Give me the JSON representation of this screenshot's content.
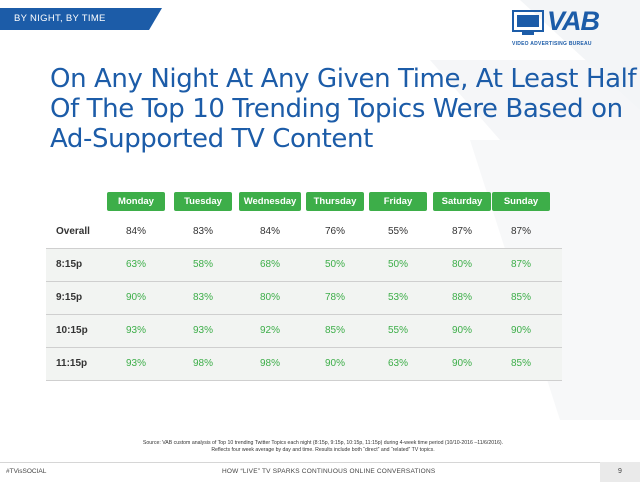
{
  "banner": "BY NIGHT, BY TIME",
  "logo": {
    "wordmark": "VAB",
    "tagline": "VIDEO ADVERTISING BUREAU",
    "brand_color": "#1c5ca8"
  },
  "headline": [
    "On Any Night At Any Given Time, At Least Half",
    "Of The Top 10 Trending Topics Were Based on",
    "Ad-Supported TV Content"
  ],
  "table": {
    "days": [
      "Monday",
      "Tuesday",
      "Wednesday",
      "Thursday",
      "Friday",
      "Saturday",
      "Sunday"
    ],
    "rows": [
      {
        "label": "Overall",
        "values": [
          "84%",
          "83%",
          "84%",
          "76%",
          "55%",
          "87%",
          "87%"
        ]
      },
      {
        "label": "8:15p",
        "values": [
          "63%",
          "58%",
          "68%",
          "50%",
          "50%",
          "80%",
          "87%"
        ]
      },
      {
        "label": "9:15p",
        "values": [
          "90%",
          "83%",
          "80%",
          "78%",
          "53%",
          "88%",
          "85%"
        ]
      },
      {
        "label": "10:15p",
        "values": [
          "93%",
          "93%",
          "92%",
          "85%",
          "55%",
          "90%",
          "90%"
        ]
      },
      {
        "label": "11:15p",
        "values": [
          "93%",
          "98%",
          "98%",
          "90%",
          "63%",
          "90%",
          "85%"
        ]
      }
    ],
    "accent_color": "#3dae49"
  },
  "source": [
    "Source: VAB custom analysis of Top 10 trending Twitter Topics each night (8:15p, 9:15p, 10:15p, 11:15p) during 4-week time period (10/10-2016 –11/6/2016).",
    "Reflects four week average by day and time. Results include both “direct” and “related” TV topics."
  ],
  "footer": {
    "hashtag": "#TVisSOCIAL",
    "title": "HOW “LIVE” TV SPARKS CONTINUOUS ONLINE CONVERSATIONS",
    "page": "9"
  }
}
